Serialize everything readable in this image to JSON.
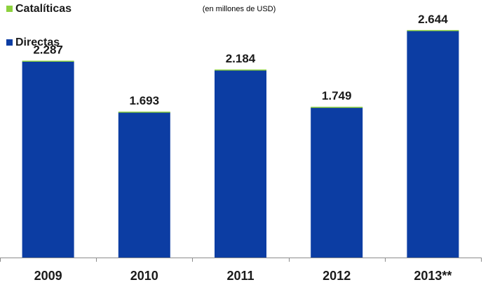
{
  "chart_data": {
    "type": "bar",
    "title": "",
    "subtitle": "(en millones de USD)",
    "xlabel": "",
    "ylabel": "",
    "categories": [
      "2009",
      "2010",
      "2011",
      "2012",
      "2013**"
    ],
    "series": [
      {
        "name": "Directas",
        "color": "#0c3da3",
        "values": [
          2287,
          1693,
          2184,
          1749,
          2644
        ]
      },
      {
        "name": "Catalíticas",
        "color": "#8dd13e",
        "values": [
          10,
          10,
          10,
          10,
          10
        ]
      }
    ],
    "data_labels": [
      "2.287",
      "1.693",
      "2.184",
      "1.749",
      "2.644"
    ],
    "ylim": [
      0,
      2700
    ],
    "grid": false,
    "stacked": true,
    "legend_position": "top-left"
  }
}
